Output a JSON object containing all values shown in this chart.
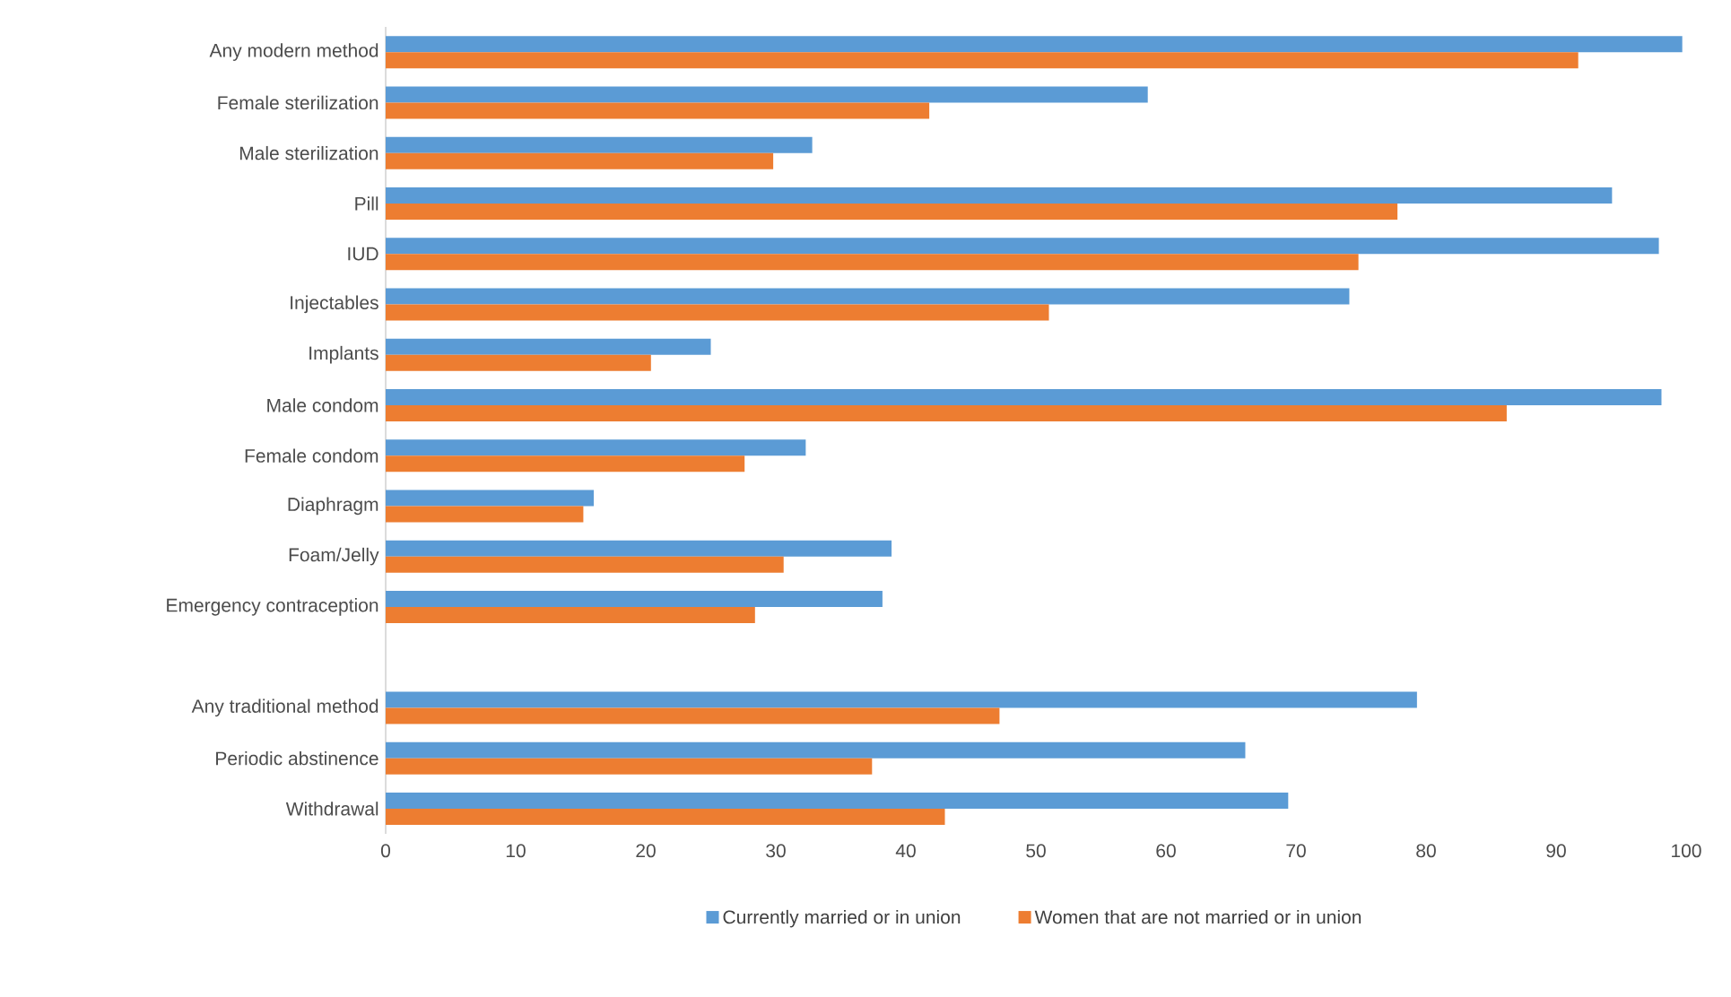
{
  "chart_data": {
    "type": "bar",
    "orientation": "horizontal",
    "categories": [
      "Any modern method",
      "Female sterilization",
      "Male sterilization",
      "Pill",
      "IUD",
      "Injectables",
      "Implants",
      "Male condom",
      "Female condom",
      "Diaphragm",
      "Foam/Jelly",
      "Emergency contraception",
      null,
      "Any traditional method",
      "Periodic abstinence",
      "Withdrawal"
    ],
    "series": [
      {
        "name": "Currently married or in union",
        "color": "#5b9bd5",
        "values": [
          99.7,
          58.6,
          32.8,
          94.3,
          97.9,
          74.1,
          25.0,
          98.1,
          32.3,
          16.0,
          38.9,
          38.2,
          null,
          79.3,
          66.1,
          69.4
        ]
      },
      {
        "name": "Women that are not married or in union",
        "color": "#ed7d31",
        "values": [
          91.7,
          41.8,
          29.8,
          77.8,
          74.8,
          51.0,
          20.4,
          86.2,
          27.6,
          15.2,
          30.6,
          28.4,
          null,
          47.2,
          37.4,
          43.0
        ]
      }
    ],
    "xlim": [
      0,
      100
    ],
    "xticks": [
      0,
      10,
      20,
      30,
      40,
      50,
      60,
      70,
      80,
      90,
      100
    ],
    "legend": "bottom"
  }
}
